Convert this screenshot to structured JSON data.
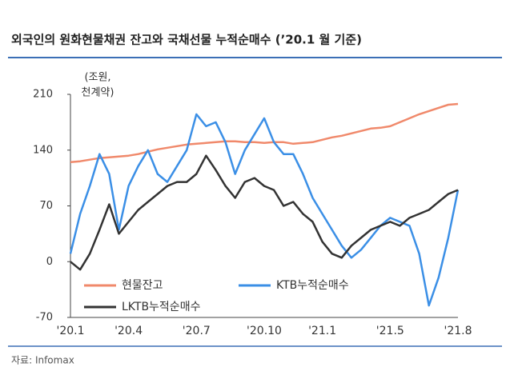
{
  "chart_data": {
    "type": "line",
    "title": "외국인의 원화현물채권 잔고와 국채선물 누적순매수 (’20.1 월 기준)",
    "y_unit": [
      "(조원,",
      "천계약)"
    ],
    "source": "자료: Infomax",
    "categories": [
      "'20.1",
      null,
      null,
      null,
      null,
      null,
      "'20.4",
      null,
      null,
      null,
      null,
      null,
      null,
      "'20.7",
      null,
      null,
      null,
      null,
      null,
      null,
      "'20.10",
      null,
      null,
      null,
      null,
      null,
      "'21.1",
      null,
      null,
      null,
      null,
      null,
      null,
      "'21.5",
      null,
      null,
      null,
      null,
      null,
      null,
      "'21.8"
    ],
    "ylim": [
      -70,
      210
    ],
    "yticks": [
      -70,
      0,
      70,
      140,
      210
    ],
    "series": [
      {
        "name": "현물잔고",
        "color": "#f0896b",
        "values": [
          125,
          126,
          128,
          130,
          131,
          132,
          133,
          135,
          138,
          141,
          143,
          145,
          147,
          148,
          149,
          150,
          151,
          151,
          150,
          150,
          149,
          150,
          150,
          148,
          149,
          150,
          153,
          156,
          158,
          161,
          164,
          167,
          168,
          170,
          175,
          180,
          185,
          189,
          193,
          197,
          198
        ]
      },
      {
        "name": "KTB누적순매수",
        "color": "#3b8fe6",
        "values": [
          10,
          60,
          95,
          135,
          110,
          40,
          95,
          120,
          140,
          110,
          100,
          120,
          140,
          185,
          170,
          175,
          150,
          110,
          140,
          160,
          180,
          150,
          135,
          135,
          110,
          80,
          60,
          40,
          20,
          5,
          15,
          30,
          45,
          55,
          50,
          45,
          10,
          -55,
          -20,
          30,
          90
        ]
      },
      {
        "name": "LKTB누적순매수",
        "color": "#333333",
        "values": [
          0,
          -10,
          10,
          40,
          72,
          35,
          50,
          65,
          75,
          85,
          95,
          100,
          100,
          110,
          133,
          115,
          95,
          80,
          100,
          105,
          95,
          90,
          70,
          75,
          60,
          50,
          25,
          10,
          5,
          20,
          30,
          40,
          45,
          50,
          45,
          55,
          60,
          65,
          75,
          85,
          90
        ]
      }
    ]
  }
}
